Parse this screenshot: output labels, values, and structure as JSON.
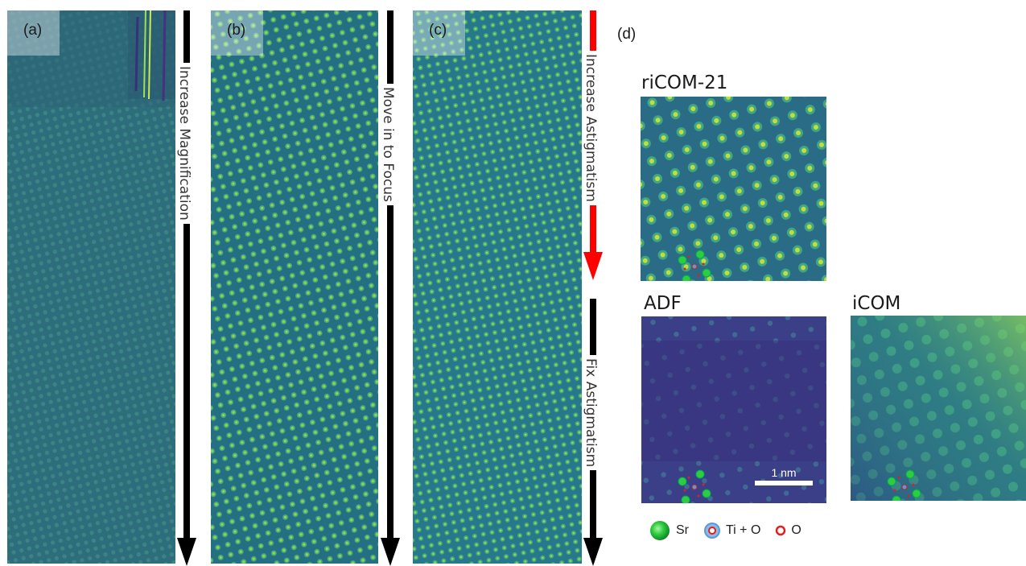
{
  "panels": {
    "a": {
      "label": "(a)",
      "annotation": "Increase Magnification"
    },
    "b": {
      "label": "(b)",
      "annotation": "Move in to Focus"
    },
    "c": {
      "label": "(c)",
      "annotation_top": "Increase Astigmatism",
      "annotation_bottom": "Fix Astigmatism"
    },
    "d": {
      "label": "(d)"
    }
  },
  "subpanels": {
    "ricom": {
      "title": "riCOM-21"
    },
    "adf": {
      "title": "ADF",
      "scale_bar": "1 nm"
    },
    "icom": {
      "title": "iCOM"
    }
  },
  "legend": {
    "sr": "Sr",
    "ti_o": "Ti + O",
    "o": "O"
  },
  "colors": {
    "arrow_black": "#000000",
    "arrow_red": "#ff0000",
    "viridis_dark": "#3b2a7a",
    "viridis_mid": "#2f7f8a",
    "viridis_bright": "#5cc863",
    "sr_green": "#2ecc40",
    "ti_blue": "#5b9bd5",
    "o_red": "#e02020"
  }
}
